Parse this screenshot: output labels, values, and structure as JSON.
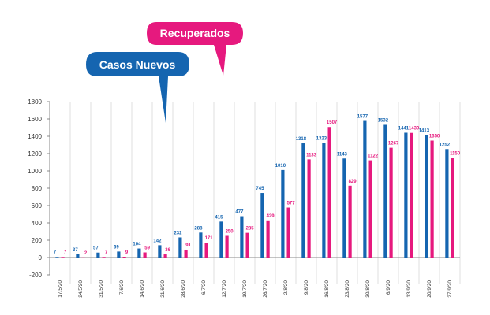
{
  "colors": {
    "casos": "#1565b0",
    "recuperados": "#e6197e",
    "axis": "#888888",
    "grid": "#d7d7d7"
  },
  "chart_data": {
    "type": "bar",
    "title": "",
    "xlabel": "",
    "ylabel": "",
    "ylim": [
      -200,
      1800
    ],
    "yticks": [
      -200,
      0,
      200,
      400,
      600,
      800,
      1000,
      1200,
      1400,
      1600,
      1800
    ],
    "grid": "vertical category separators",
    "legend": "callout bubbles at top-left",
    "categories": [
      "17/5/20",
      "24/5/20",
      "31/5/20",
      "7/6/20",
      "14/6/20",
      "21/6/20",
      "28/6/20",
      "6/7/20",
      "12/7/20",
      "19/7/20",
      "26/7/20",
      "2/8/20",
      "9/8/20",
      "16/8/20",
      "23/8/20",
      "30/8/20",
      "6/9/20",
      "13/9/20",
      "20/9/20",
      "27/9/20"
    ],
    "series": [
      {
        "name": "Casos Nuevos",
        "color": "#1565b0",
        "values": [
          7,
          37,
          57,
          69,
          104,
          142,
          232,
          288,
          415,
          477,
          745,
          1010,
          1318,
          1323,
          1143,
          1577,
          1532,
          1441,
          1413,
          1252
        ]
      },
      {
        "name": "Recuperados",
        "color": "#e6197e",
        "values": [
          7,
          2,
          7,
          9,
          59,
          36,
          91,
          171,
          250,
          285,
          429,
          577,
          1133,
          1507,
          829,
          1122,
          1267,
          1439,
          1350,
          1150
        ]
      }
    ]
  }
}
